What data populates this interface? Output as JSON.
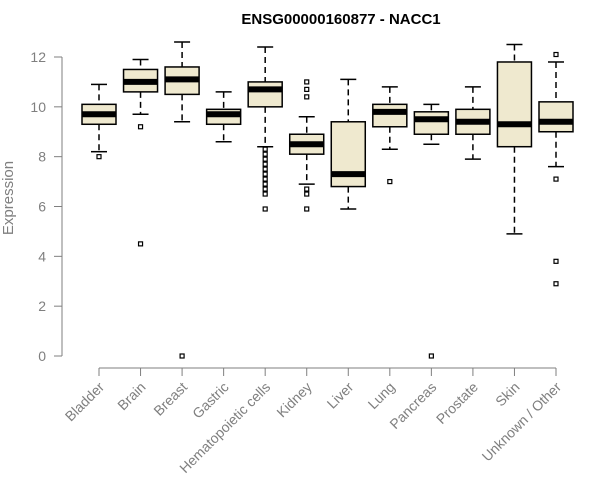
{
  "chart_data": {
    "type": "box",
    "title": "ENSG00000160877 - NACC1",
    "xlabel": "",
    "ylabel": "Expression",
    "ylim": [
      0,
      12
    ],
    "yticks": [
      0,
      2,
      4,
      6,
      8,
      10,
      12
    ],
    "categories": [
      "Bladder",
      "Brain",
      "Breast",
      "Gastric",
      "Hematopoietic cells",
      "Kidney",
      "Liver",
      "Lung",
      "Pancreas",
      "Prostate",
      "Skin",
      "Unknown / Other"
    ],
    "boxes": [
      {
        "category": "Bladder",
        "whisker_low": 8.2,
        "q1": 9.3,
        "median": 9.7,
        "q3": 10.1,
        "whisker_high": 10.9,
        "outliers": [
          8.0
        ]
      },
      {
        "category": "Brain",
        "whisker_low": 9.7,
        "q1": 10.6,
        "median": 11.0,
        "q3": 11.5,
        "whisker_high": 11.9,
        "outliers": [
          9.2,
          4.5
        ]
      },
      {
        "category": "Breast",
        "whisker_low": 9.4,
        "q1": 10.5,
        "median": 11.1,
        "q3": 11.6,
        "whisker_high": 12.6,
        "outliers": [
          0.0
        ]
      },
      {
        "category": "Gastric",
        "whisker_low": 8.6,
        "q1": 9.3,
        "median": 9.7,
        "q3": 9.9,
        "whisker_high": 10.6,
        "outliers": []
      },
      {
        "category": "Hematopoietic cells",
        "whisker_low": 8.4,
        "q1": 10.0,
        "median": 10.7,
        "q3": 11.0,
        "whisker_high": 12.4,
        "outliers": [
          8.3,
          8.1,
          7.9,
          7.7,
          7.5,
          7.3,
          7.1,
          6.9,
          6.7,
          6.5,
          5.9
        ]
      },
      {
        "category": "Kidney",
        "whisker_low": 6.9,
        "q1": 8.1,
        "median": 8.5,
        "q3": 8.9,
        "whisker_high": 9.6,
        "outliers": [
          11.0,
          10.7,
          10.4,
          6.7,
          6.5,
          5.9
        ]
      },
      {
        "category": "Liver",
        "whisker_low": 5.9,
        "q1": 6.8,
        "median": 7.3,
        "q3": 9.4,
        "whisker_high": 11.1,
        "outliers": []
      },
      {
        "category": "Lung",
        "whisker_low": 8.3,
        "q1": 9.2,
        "median": 9.8,
        "q3": 10.1,
        "whisker_high": 10.8,
        "outliers": [
          7.0
        ]
      },
      {
        "category": "Pancreas",
        "whisker_low": 8.5,
        "q1": 8.9,
        "median": 9.5,
        "q3": 9.8,
        "whisker_high": 10.1,
        "outliers": [
          0.0
        ]
      },
      {
        "category": "Prostate",
        "whisker_low": 7.9,
        "q1": 8.9,
        "median": 9.4,
        "q3": 9.9,
        "whisker_high": 10.8,
        "outliers": []
      },
      {
        "category": "Skin",
        "whisker_low": 4.9,
        "q1": 8.4,
        "median": 9.3,
        "q3": 11.8,
        "whisker_high": 12.5,
        "outliers": []
      },
      {
        "category": "Unknown / Other",
        "whisker_low": 7.6,
        "q1": 9.0,
        "median": 9.4,
        "q3": 10.2,
        "whisker_high": 11.8,
        "outliers": [
          12.1,
          7.1,
          3.8,
          2.9
        ]
      }
    ],
    "box_fill": "#efe9cf",
    "stroke_color": "#000000",
    "axis_color": "#7f7f7f",
    "grid": false,
    "legend": "none"
  }
}
